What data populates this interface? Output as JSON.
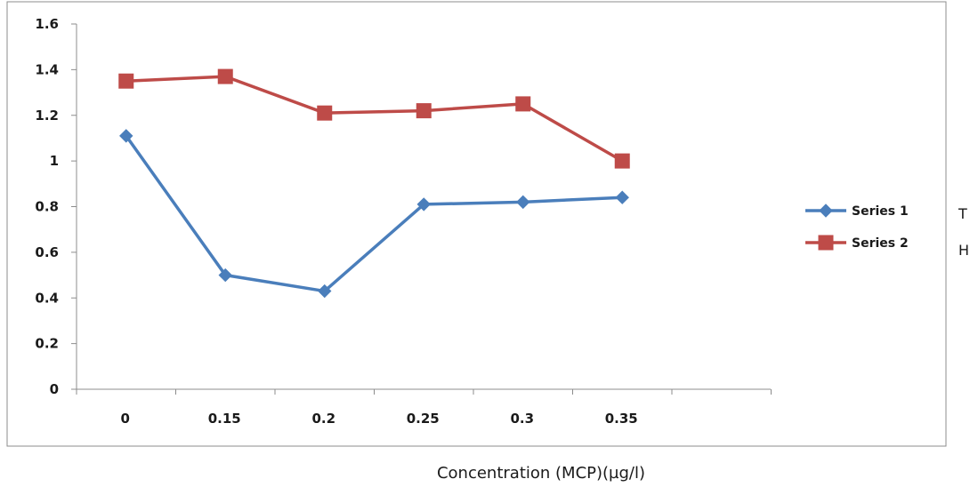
{
  "chart_data": {
    "type": "line",
    "categories": [
      "0",
      "0.15",
      "0.2",
      "0.25",
      "0.3",
      "0.35"
    ],
    "series": [
      {
        "name": "Series 1",
        "values": [
          1.11,
          0.5,
          0.43,
          0.81,
          0.82,
          0.84
        ],
        "color": "#4a7ebb",
        "marker": "diamond",
        "side_label": "T"
      },
      {
        "name": "Series 2",
        "values": [
          1.35,
          1.37,
          1.21,
          1.22,
          1.25,
          1.0
        ],
        "color": "#be4b48",
        "marker": "square",
        "side_label": "H"
      }
    ],
    "ylim": [
      0,
      1.6
    ],
    "yticks": [
      "0",
      "0.2",
      "0.4",
      "0.6",
      "0.8",
      "1",
      "1.2",
      "1.4",
      "1.6"
    ],
    "xlabel": "Concentration (MCP)(µg/l)",
    "ylabel": "",
    "title": "",
    "grid": false,
    "legend_position": "right"
  }
}
